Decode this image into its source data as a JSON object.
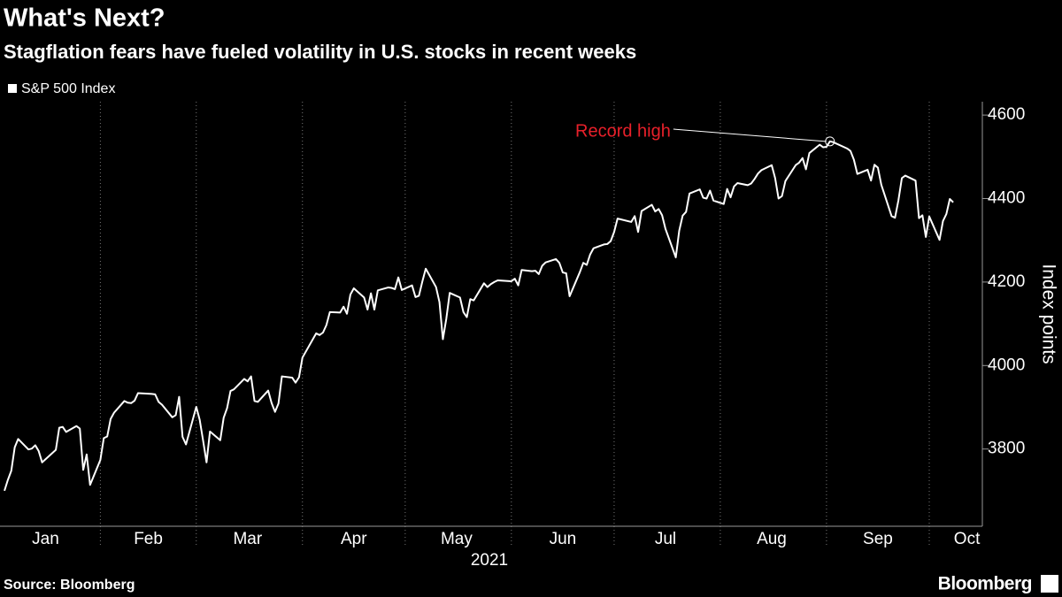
{
  "chart_data": {
    "type": "line",
    "title": "What's Next?",
    "subtitle": "Stagflation fears have fueled volatility in U.S. stocks in recent weeks",
    "y_label": "Index points",
    "x_label": "2021",
    "source": "Source: Bloomberg",
    "brand": "Bloomberg",
    "grid": true,
    "legend": "top-left",
    "xlim": [
      1.7,
      288.5
    ],
    "ylim": [
      3615,
      4632
    ],
    "yticks": [
      3800,
      4000,
      4200,
      4400,
      4600
    ],
    "xticks": [
      {
        "value": 15,
        "label": "Jan"
      },
      {
        "value": 45,
        "label": "Feb"
      },
      {
        "value": 74,
        "label": "Mar"
      },
      {
        "value": 105,
        "label": "Apr"
      },
      {
        "value": 135,
        "label": "May"
      },
      {
        "value": 166,
        "label": "Jun"
      },
      {
        "value": 196,
        "label": "Jul"
      },
      {
        "value": 227,
        "label": "Aug"
      },
      {
        "value": 258,
        "label": "Sep"
      },
      {
        "value": 284,
        "label": "Oct"
      }
    ],
    "xgrid": [
      31,
      59,
      90,
      120,
      151,
      181,
      212,
      243,
      273
    ],
    "annotation": {
      "text": "Record high",
      "x": 244,
      "y": 4537,
      "color": "#e8202a"
    },
    "x": [
      3,
      4,
      5,
      6,
      7,
      10,
      11,
      12,
      13,
      14,
      18,
      19,
      20,
      21,
      24,
      25,
      26,
      27,
      28,
      31,
      32,
      33,
      34,
      35,
      38,
      39,
      40,
      41,
      42,
      46,
      47,
      48,
      49,
      52,
      53,
      54,
      55,
      56,
      59,
      60,
      61,
      62,
      63,
      66,
      67,
      68,
      69,
      70,
      73,
      74,
      75,
      76,
      77,
      80,
      81,
      82,
      83,
      84,
      87,
      88,
      89,
      90,
      94,
      95,
      96,
      97,
      98,
      101,
      102,
      103,
      104,
      105,
      108,
      109,
      110,
      111,
      112,
      115,
      116,
      117,
      118,
      119,
      122,
      123,
      124,
      125,
      126,
      129,
      130,
      131,
      132,
      133,
      136,
      137,
      138,
      139,
      140,
      143,
      144,
      145,
      146,
      147,
      151,
      152,
      153,
      154,
      157,
      158,
      159,
      160,
      161,
      164,
      165,
      166,
      167,
      168,
      171,
      172,
      173,
      174,
      175,
      178,
      179,
      180,
      181,
      182,
      186,
      187,
      188,
      189,
      192,
      193,
      194,
      195,
      196,
      199,
      200,
      201,
      202,
      203,
      206,
      207,
      208,
      209,
      210,
      213,
      214,
      215,
      216,
      217,
      220,
      221,
      222,
      223,
      224,
      227,
      228,
      229,
      230,
      231,
      234,
      235,
      236,
      237,
      238,
      241,
      242,
      243,
      244,
      245,
      249,
      250,
      251,
      252,
      255,
      256,
      257,
      258,
      259,
      262,
      263,
      264,
      265,
      266,
      269,
      270,
      271,
      272,
      273,
      276,
      277,
      278,
      279,
      280
    ],
    "series": [
      {
        "name": "S&P 500 Index",
        "color": "#ffffff",
        "values": [
          3700,
          3726,
          3748,
          3804,
          3824,
          3799,
          3801,
          3809,
          3795,
          3768,
          3798,
          3851,
          3853,
          3841,
          3855,
          3849,
          3750,
          3787,
          3714,
          3774,
          3826,
          3830,
          3872,
          3887,
          3915,
          3911,
          3910,
          3916,
          3934,
          3932,
          3931,
          3913,
          3906,
          3876,
          3881,
          3925,
          3829,
          3811,
          3901,
          3870,
          3820,
          3768,
          3842,
          3821,
          3875,
          3898,
          3939,
          3943,
          3968,
          3962,
          3974,
          3915,
          3913,
          3940,
          3910,
          3889,
          3909,
          3974,
          3971,
          3959,
          3972,
          4019,
          4077,
          4073,
          4079,
          4097,
          4128,
          4127,
          4141,
          4124,
          4170,
          4185,
          4163,
          4134,
          4173,
          4134,
          4180,
          4187,
          4186,
          4183,
          4211,
          4181,
          4192,
          4164,
          4167,
          4201,
          4232,
          4188,
          4152,
          4063,
          4112,
          4174,
          4163,
          4128,
          4116,
          4159,
          4156,
          4197,
          4188,
          4195,
          4200,
          4204,
          4202,
          4208,
          4192,
          4229,
          4226,
          4227,
          4219,
          4239,
          4247,
          4255,
          4246,
          4223,
          4221,
          4166,
          4224,
          4246,
          4241,
          4266,
          4281,
          4290,
          4291,
          4298,
          4320,
          4352,
          4344,
          4358,
          4320,
          4370,
          4385,
          4369,
          4375,
          4360,
          4327,
          4259,
          4323,
          4359,
          4368,
          4412,
          4422,
          4402,
          4400,
          4419,
          4395,
          4387,
          4423,
          4403,
          4429,
          4437,
          4432,
          4436,
          4447,
          4460,
          4468,
          4480,
          4449,
          4400,
          4406,
          4442,
          4480,
          4486,
          4497,
          4470,
          4509,
          4529,
          4523,
          4524,
          4537,
          4535,
          4520,
          4514,
          4493,
          4459,
          4469,
          4443,
          4481,
          4474,
          4433,
          4358,
          4354,
          4396,
          4449,
          4455,
          4443,
          4353,
          4360,
          4308,
          4357,
          4301,
          4346,
          4363,
          4399,
          4391
        ]
      }
    ]
  }
}
